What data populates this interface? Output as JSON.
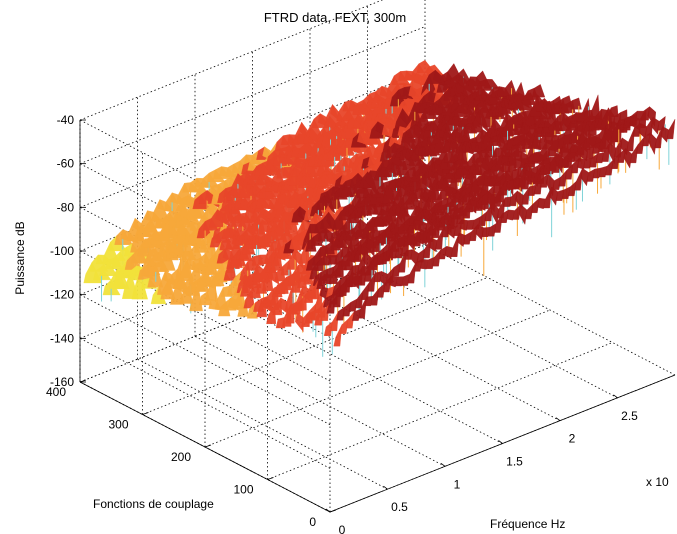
{
  "chart_data": {
    "type": "surface",
    "title": "FTRD data, FEXT, 300m",
    "xlabel": "Fréquence Hz",
    "ylabel": "Fonctions de couplage",
    "zlabel": "Puissance dB",
    "x_exponent_label": "x 10",
    "x_ticks": [
      "0",
      "0.5",
      "1",
      "1.5",
      "2",
      "2.5"
    ],
    "y_ticks": [
      "0",
      "100",
      "200",
      "300",
      "400"
    ],
    "z_ticks": [
      "-40",
      "-60",
      "-80",
      "-100",
      "-120",
      "-140",
      "-160"
    ],
    "xlim": [
      0,
      3.0
    ],
    "ylim": [
      0,
      400
    ],
    "zlim": [
      -160,
      -40
    ],
    "grid": true,
    "colormap": [
      "#7fd3d8",
      "#b8e07a",
      "#f2e23a",
      "#f7a83a",
      "#e8462a",
      "#a01818"
    ]
  }
}
